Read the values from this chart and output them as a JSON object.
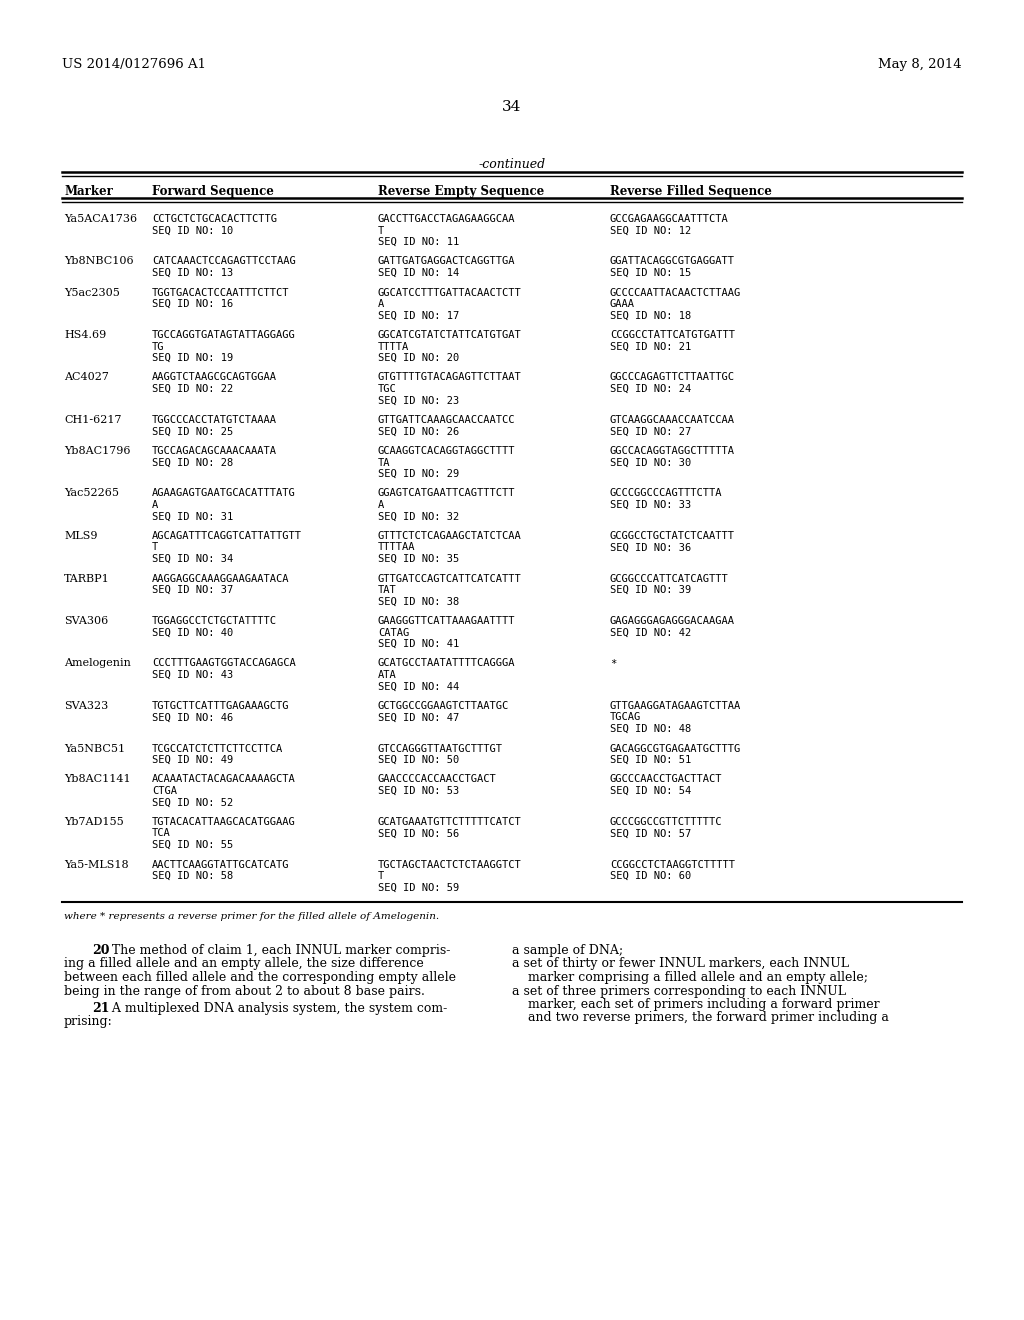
{
  "header_left": "US 2014/0127696 A1",
  "header_right": "May 8, 2014",
  "page_number": "34",
  "continued_label": "-continued",
  "col_headers": [
    "Marker",
    "Forward Sequence",
    "Reverse Empty Sequence",
    "Reverse Filled Sequence"
  ],
  "table_data": [
    {
      "marker": "Ya5ACA1736",
      "forward": [
        "CCTGCTCTGCACACTTCTTG",
        "SEQ ID NO: 10"
      ],
      "rev_empty": [
        "GACCTTGACCTAGAGAAGGCAA",
        "T",
        "SEQ ID NO: 11"
      ],
      "rev_filled": [
        "GCCGAGAAGGCAATTTCTA",
        "SEQ ID NO: 12"
      ]
    },
    {
      "marker": "Yb8NBC106",
      "forward": [
        "CATCAAACTCCAGAGTTCCTAAG",
        "SEQ ID NO: 13"
      ],
      "rev_empty": [
        "GATTGATGAGGACTCAGGTTGA",
        "SEQ ID NO: 14"
      ],
      "rev_filled": [
        "GGATTACAGGCGTGAGGATT",
        "SEQ ID NO: 15"
      ]
    },
    {
      "marker": "Y5ac2305",
      "forward": [
        "TGGTGACACTCCAATTTCTTCT",
        "SEQ ID NO: 16"
      ],
      "rev_empty": [
        "GGCATCCTTTGATTACAACTCTT",
        "A",
        "SEQ ID NO: 17"
      ],
      "rev_filled": [
        "GCCCCAATTACAACTCTTAAG",
        "GAAA",
        "SEQ ID NO: 18"
      ]
    },
    {
      "marker": "HS4.69",
      "forward": [
        "TGCCAGGTGATAGTATTAGGAGG",
        "TG",
        "SEQ ID NO: 19"
      ],
      "rev_empty": [
        "GGCATCGTATCTATTCATGTGAT",
        "TTTTA",
        "SEQ ID NO: 20"
      ],
      "rev_filled": [
        "CCGGCCTATTCATGTGATTT",
        "SEQ ID NO: 21"
      ]
    },
    {
      "marker": "AC4027",
      "forward": [
        "AAGGTCTAAGCGCAGTGGAA",
        "SEQ ID NO: 22"
      ],
      "rev_empty": [
        "GTGTTTTGTACAGAGTTCTTAAT",
        "TGC",
        "SEQ ID NO: 23"
      ],
      "rev_filled": [
        "GGCCCAGAGTTCTTAATTGC",
        "SEQ ID NO: 24"
      ]
    },
    {
      "marker": "CH1-6217",
      "forward": [
        "TGGCCCACCTATGTCTAAAA",
        "SEQ ID NO: 25"
      ],
      "rev_empty": [
        "GTTGATTCAAAGCAACCAATCC",
        "SEQ ID NO: 26"
      ],
      "rev_filled": [
        "GTCAAGGCAAACCAATCCAA",
        "SEQ ID NO: 27"
      ]
    },
    {
      "marker": "Yb8AC1796",
      "forward": [
        "TGCCAGACAGCAAACAAATA",
        "SEQ ID NO: 28"
      ],
      "rev_empty": [
        "GCAAGGTCACAGGTAGGCTTTT",
        "TA",
        "SEQ ID NO: 29"
      ],
      "rev_filled": [
        "GGCCACAGGTAGGCTTTTTA",
        "SEQ ID NO: 30"
      ]
    },
    {
      "marker": "Yac52265",
      "forward": [
        "AGAAGAGTGAATGCACATTTATG",
        "A",
        "SEQ ID NO: 31"
      ],
      "rev_empty": [
        "GGAGTCATGAATTCAGTTTCTT",
        "A",
        "SEQ ID NO: 32"
      ],
      "rev_filled": [
        "GCCCGGCCCAGTTTCTTA",
        "SEQ ID NO: 33"
      ]
    },
    {
      "marker": "MLS9",
      "forward": [
        "AGCAGATTTCAGGTCATTATTGTT",
        "T",
        "SEQ ID NO: 34"
      ],
      "rev_empty": [
        "GTTTCTCTCAGAAGCTATCTCAA",
        "TTTTAA",
        "SEQ ID NO: 35"
      ],
      "rev_filled": [
        "GCGGCCTGCTATCTCAATTT",
        "SEQ ID NO: 36"
      ]
    },
    {
      "marker": "TARBP1",
      "forward": [
        "AAGGAGGCAAAGGAAGAATACA",
        "SEQ ID NO: 37"
      ],
      "rev_empty": [
        "GTTGATCCAGTCATTCATCATTT",
        "TAT",
        "SEQ ID NO: 38"
      ],
      "rev_filled": [
        "GCGGCCCATTCATCAGTTT",
        "SEQ ID NO: 39"
      ]
    },
    {
      "marker": "SVA306",
      "forward": [
        "TGGAGGCCTCTGCTATTTTC",
        "SEQ ID NO: 40"
      ],
      "rev_empty": [
        "GAAGGGTTCATTAAAGAATTTT",
        "CATAG",
        "SEQ ID NO: 41"
      ],
      "rev_filled": [
        "GAGAGGGAGAGGGACAAGAA",
        "SEQ ID NO: 42"
      ]
    },
    {
      "marker": "Amelogenin",
      "forward": [
        "CCCTTTGAAGTGGTACCAGAGCA",
        "SEQ ID NO: 43"
      ],
      "rev_empty": [
        "GCATGCCTAATATTTTCAGGGA",
        "ATA",
        "SEQ ID NO: 44"
      ],
      "rev_filled": [
        "*"
      ]
    },
    {
      "marker": "SVA323",
      "forward": [
        "TGTGCTTCATTTGAGAAAGCTG",
        "SEQ ID NO: 46"
      ],
      "rev_empty": [
        "GCTGGCCGGAAGTCTTAATGC",
        "SEQ ID NO: 47"
      ],
      "rev_filled": [
        "GTTGAAGGATAGAAGTCTTAA",
        "TGCAG",
        "SEQ ID NO: 48"
      ]
    },
    {
      "marker": "Ya5NBC51",
      "forward": [
        "TCGCCATCTCTTCTTCCTTCA",
        "SEQ ID NO: 49"
      ],
      "rev_empty": [
        "GTCCAGGGTTAATGCTTTGT",
        "SEQ ID NO: 50"
      ],
      "rev_filled": [
        "GACAGGCGTGAGAATGCTTTG",
        "SEQ ID NO: 51"
      ]
    },
    {
      "marker": "Yb8AC1141",
      "forward": [
        "ACAAATACTACAGACAAAAGCTA",
        "CTGA",
        "SEQ ID NO: 52"
      ],
      "rev_empty": [
        "GAACCCCACCAACCTGACT",
        "SEQ ID NO: 53"
      ],
      "rev_filled": [
        "GGCCCAACCTGACTTACT",
        "SEQ ID NO: 54"
      ]
    },
    {
      "marker": "Yb7AD155",
      "forward": [
        "TGTACACATTAAGCACATGGAAG",
        "TCA",
        "SEQ ID NO: 55"
      ],
      "rev_empty": [
        "GCATGAAATGTTCTTTTTCATCT",
        "SEQ ID NO: 56"
      ],
      "rev_filled": [
        "GCCCGGCCGTTCTTTTTC",
        "SEQ ID NO: 57"
      ]
    },
    {
      "marker": "Ya5-MLS18",
      "forward": [
        "AACTTCAAGGTATTGCATCATG",
        "SEQ ID NO: 58"
      ],
      "rev_empty": [
        "TGCTAGCTAACTCTCTAAGGTCT",
        "T",
        "SEQ ID NO: 59"
      ],
      "rev_filled": [
        "CCGGCCTCTAAGGTCTTTTT",
        "SEQ ID NO: 60"
      ]
    }
  ],
  "footnote": "where * represents a reverse primer for the filled allele of Amelogenin.",
  "para20_bold": "20",
  "para20_text": ". The method of claim 1, each INNUL marker compris-\ning a filled allele and an empty allele, the size difference\nbetween each filled allele and the corresponding empty allele\nbeing in the range of from about 2 to about 8 base pairs.",
  "para21_bold": "21",
  "para21_text": ". A multiplexed DNA analysis system, the system com-\nprising:",
  "para21_right": "a sample of DNA;\na set of thirty or fewer INNUL markers, each INNUL\n    marker comprising a filled allele and an empty allele;\na set of three primers corresponding to each INNUL\n    marker, each set of primers including a forward primer\n    and two reverse primers, the forward primer including a"
}
